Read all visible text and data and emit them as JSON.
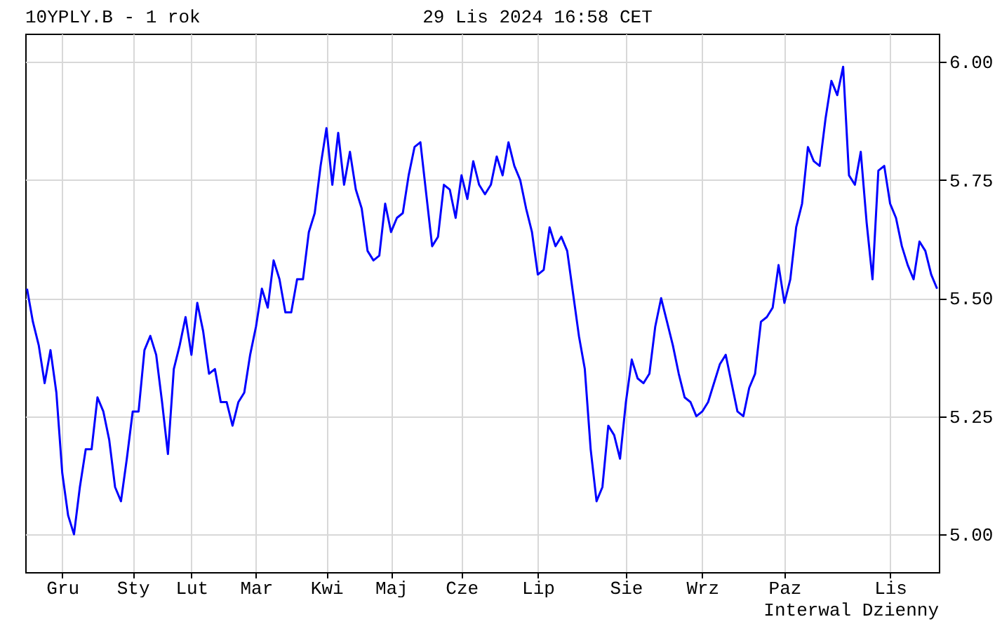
{
  "chart_data": {
    "type": "line",
    "title": "10YPLY.B - 1 rok",
    "subtitle": "29 Lis 2024 16:58 CET",
    "annotations": [
      "Interwal Dzienny"
    ],
    "categories": [
      null,
      null,
      null,
      null,
      null,
      null,
      "Gru",
      null,
      null,
      null,
      null,
      null,
      null,
      null,
      null,
      null,
      null,
      null,
      "Sty",
      null,
      null,
      null,
      null,
      null,
      null,
      null,
      null,
      null,
      "Lut",
      null,
      null,
      null,
      null,
      null,
      null,
      null,
      null,
      null,
      null,
      "Mar",
      null,
      null,
      null,
      null,
      null,
      null,
      null,
      null,
      null,
      null,
      null,
      "Kwi",
      null,
      null,
      null,
      null,
      null,
      null,
      null,
      null,
      null,
      null,
      "Maj",
      null,
      null,
      null,
      null,
      null,
      null,
      null,
      null,
      null,
      null,
      null,
      "Cze",
      null,
      null,
      null,
      null,
      null,
      null,
      null,
      null,
      null,
      null,
      null,
      null,
      "Lip",
      null,
      null,
      null,
      null,
      null,
      null,
      null,
      null,
      null,
      null,
      null,
      null,
      null,
      null,
      "Sie",
      null,
      null,
      null,
      null,
      null,
      null,
      null,
      null,
      null,
      null,
      null,
      null,
      "Wrz",
      null,
      null,
      null,
      null,
      null,
      null,
      null,
      null,
      null,
      null,
      null,
      null,
      null,
      "Paz",
      null,
      null,
      null,
      null,
      null,
      null,
      null,
      null,
      null,
      null,
      null,
      null,
      null,
      null,
      null,
      null,
      null,
      "Lis",
      null,
      null,
      null,
      null,
      null,
      null,
      null,
      null
    ],
    "series": [
      {
        "color": "#0000ff",
        "values": [
          5.52,
          5.45,
          5.4,
          5.32,
          5.39,
          5.3,
          5.13,
          5.04,
          5.0,
          5.1,
          5.18,
          5.18,
          5.29,
          5.26,
          5.2,
          5.1,
          5.07,
          5.16,
          5.26,
          5.26,
          5.39,
          5.42,
          5.38,
          5.28,
          5.17,
          5.35,
          5.4,
          5.46,
          5.38,
          5.49,
          5.43,
          5.34,
          5.35,
          5.28,
          5.28,
          5.23,
          5.28,
          5.3,
          5.38,
          5.44,
          5.52,
          5.48,
          5.58,
          5.54,
          5.47,
          5.47,
          5.54,
          5.54,
          5.64,
          5.68,
          5.78,
          5.86,
          5.74,
          5.85,
          5.74,
          5.81,
          5.73,
          5.69,
          5.6,
          5.58,
          5.59,
          5.7,
          5.64,
          5.67,
          5.68,
          5.76,
          5.82,
          5.83,
          5.72,
          5.61,
          5.63,
          5.74,
          5.73,
          5.67,
          5.76,
          5.71,
          5.79,
          5.74,
          5.72,
          5.74,
          5.8,
          5.76,
          5.83,
          5.78,
          5.75,
          5.69,
          5.64,
          5.55,
          5.56,
          5.65,
          5.61,
          5.63,
          5.6,
          5.51,
          5.42,
          5.35,
          5.18,
          5.07,
          5.1,
          5.23,
          5.21,
          5.16,
          5.28,
          5.37,
          5.33,
          5.32,
          5.34,
          5.44,
          5.5,
          5.45,
          5.4,
          5.34,
          5.29,
          5.28,
          5.25,
          5.26,
          5.28,
          5.32,
          5.36,
          5.38,
          5.32,
          5.26,
          5.25,
          5.31,
          5.34,
          5.45,
          5.46,
          5.48,
          5.57,
          5.49,
          5.54,
          5.65,
          5.7,
          5.82,
          5.79,
          5.78,
          5.88,
          5.96,
          5.93,
          5.99,
          5.76,
          5.74,
          5.81,
          5.66,
          5.54,
          5.77,
          5.78,
          5.7,
          5.67,
          5.61,
          5.57,
          5.54,
          5.62,
          5.6,
          5.55,
          5.52
        ]
      }
    ],
    "ylim": [
      4.92,
      6.06
    ],
    "yticks": [
      {
        "value": 5,
        "label": "5.00"
      },
      {
        "value": 5.25,
        "label": "5.25"
      },
      {
        "value": 5.5,
        "label": "5.50"
      },
      {
        "value": 5.75,
        "label": "5.75"
      },
      {
        "value": 6,
        "label": "6.00"
      }
    ],
    "grid": true
  }
}
